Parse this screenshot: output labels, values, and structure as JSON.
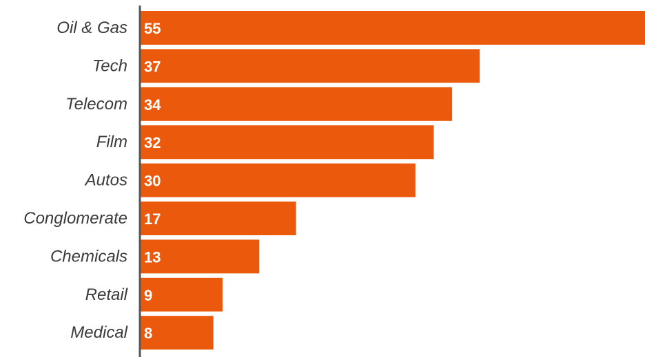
{
  "chart_data": {
    "type": "bar",
    "orientation": "horizontal",
    "categories": [
      "Oil & Gas",
      "Tech",
      "Telecom",
      "Film",
      "Autos",
      "Conglomerate",
      "Chemicals",
      "Retail",
      "Medical"
    ],
    "values": [
      55,
      37,
      34,
      32,
      30,
      17,
      13,
      9,
      8
    ],
    "value_labels": [
      "55",
      "37",
      "34",
      "32",
      "30",
      "17",
      "13",
      "9",
      "8"
    ],
    "xlim": [
      0,
      55
    ],
    "grid": false,
    "legend": "none",
    "bar_color": "#eb5a0c",
    "axis_color": "#555555"
  }
}
